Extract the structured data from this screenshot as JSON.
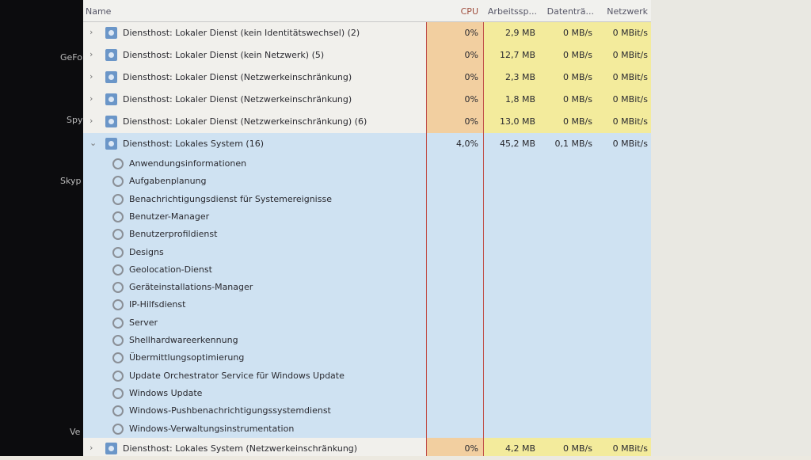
{
  "left_apps": [
    "GeFo",
    "Spy",
    "Skyp",
    "Ve"
  ],
  "columns": {
    "name": "Name",
    "cpu": "CPU",
    "memory": "Arbeitssp...",
    "disk": "Datenträ...",
    "network": "Netzwerk"
  },
  "rows_top": [
    {
      "name": "Diensthost: Lokaler Dienst (kein Identitätswechsel) (2)",
      "cpu": "0%",
      "memory": "2,9 MB",
      "disk": "0 MB/s",
      "network": "0 MBit/s"
    },
    {
      "name": "Diensthost: Lokaler Dienst (kein Netzwerk) (5)",
      "cpu": "0%",
      "memory": "12,7 MB",
      "disk": "0 MB/s",
      "network": "0 MBit/s"
    },
    {
      "name": "Diensthost: Lokaler Dienst (Netzwerkeinschränkung)",
      "cpu": "0%",
      "memory": "2,3 MB",
      "disk": "0 MB/s",
      "network": "0 MBit/s"
    },
    {
      "name": "Diensthost: Lokaler Dienst (Netzwerkeinschränkung)",
      "cpu": "0%",
      "memory": "1,8 MB",
      "disk": "0 MB/s",
      "network": "0 MBit/s"
    },
    {
      "name": "Diensthost: Lokaler Dienst (Netzwerkeinschränkung) (6)",
      "cpu": "0%",
      "memory": "13,0 MB",
      "disk": "0 MB/s",
      "network": "0 MBit/s"
    },
    {
      "name": "Diensthost: Lokales System (16)",
      "cpu": "4,0%",
      "memory": "45,2 MB",
      "disk": "0,1 MB/s",
      "network": "0 MBit/s"
    }
  ],
  "children": [
    "Anwendungsinformationen",
    "Aufgabenplanung",
    "Benachrichtigungsdienst für Systemereignisse",
    "Benutzer-Manager",
    "Benutzerprofildienst",
    "Designs",
    "Geolocation-Dienst",
    "Geräteinstallations-Manager",
    "IP-Hilfsdienst",
    "Server",
    "Shellhardwareerkennung",
    "Übermittlungsoptimierung",
    "Update Orchestrator Service für Windows Update",
    "Windows Update",
    "Windows-Pushbenachrichtigungssystemdienst",
    "Windows-Verwaltungsinstrumentation"
  ],
  "rows_bottom": [
    {
      "name": "Diensthost: Lokales System (Netzwerkeinschränkung)",
      "cpu": "0%",
      "memory": "4,2 MB",
      "disk": "0 MB/s",
      "network": "0 MBit/s"
    }
  ],
  "colors": {
    "cpu_col": "#f2cfa0",
    "heat_col": "#f3eb9c",
    "selected_group": "#cfe2f2",
    "sort_line": "#c0504a"
  }
}
